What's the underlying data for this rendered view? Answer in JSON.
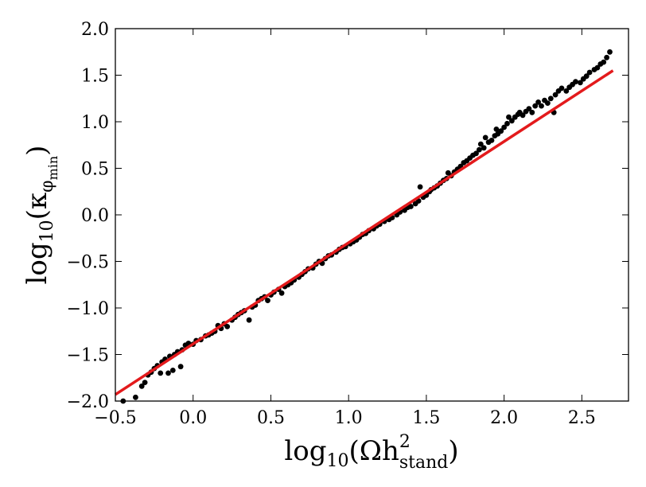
{
  "chart_data": {
    "type": "scatter",
    "title": "",
    "xlabel": {
      "prefix": "log",
      "base": "10",
      "open": "(Ωh",
      "sup": "2",
      "sub": "stand",
      "close": ")"
    },
    "ylabel": {
      "prefix": "log",
      "base": "10",
      "open": "(κ",
      "sub1": "φ",
      "sub2": "min",
      "close": ")"
    },
    "xlim": [
      -0.5,
      2.8
    ],
    "ylim": [
      -2.0,
      2.0
    ],
    "xticks": [
      {
        "value": -0.5,
        "label": "−0.5"
      },
      {
        "value": 0.0,
        "label": "0.0"
      },
      {
        "value": 0.5,
        "label": "0.5"
      },
      {
        "value": 1.0,
        "label": "1.0"
      },
      {
        "value": 1.5,
        "label": "1.5"
      },
      {
        "value": 2.0,
        "label": "2.0"
      },
      {
        "value": 2.5,
        "label": "2.5"
      }
    ],
    "yticks": [
      {
        "value": -2.0,
        "label": "−2.0"
      },
      {
        "value": -1.5,
        "label": "−1.5"
      },
      {
        "value": -1.0,
        "label": "−1.0"
      },
      {
        "value": -0.5,
        "label": "−0.5"
      },
      {
        "value": 0.0,
        "label": "0.0"
      },
      {
        "value": 0.5,
        "label": "0.5"
      },
      {
        "value": 1.0,
        "label": "1.0"
      },
      {
        "value": 1.5,
        "label": "1.5"
      },
      {
        "value": 2.0,
        "label": "2.0"
      }
    ],
    "grid": false,
    "legend": "none",
    "series": [
      {
        "kind": "scatter",
        "color": "#000000",
        "points": [
          [
            -0.45,
            -2.0
          ],
          [
            -0.37,
            -1.96
          ],
          [
            -0.33,
            -1.84
          ],
          [
            -0.31,
            -1.8
          ],
          [
            -0.29,
            -1.72
          ],
          [
            -0.27,
            -1.69
          ],
          [
            -0.25,
            -1.65
          ],
          [
            -0.23,
            -1.62
          ],
          [
            -0.21,
            -1.7
          ],
          [
            -0.2,
            -1.58
          ],
          [
            -0.18,
            -1.55
          ],
          [
            -0.16,
            -1.7
          ],
          [
            -0.15,
            -1.52
          ],
          [
            -0.13,
            -1.67
          ],
          [
            -0.12,
            -1.5
          ],
          [
            -0.1,
            -1.47
          ],
          [
            -0.08,
            -1.63
          ],
          [
            -0.07,
            -1.45
          ],
          [
            -0.05,
            -1.4
          ],
          [
            -0.03,
            -1.38
          ],
          [
            0.0,
            -1.39
          ],
          [
            0.02,
            -1.35
          ],
          [
            0.05,
            -1.34
          ],
          [
            0.08,
            -1.3
          ],
          [
            0.1,
            -1.29
          ],
          [
            0.12,
            -1.27
          ],
          [
            0.14,
            -1.25
          ],
          [
            0.16,
            -1.19
          ],
          [
            0.18,
            -1.22
          ],
          [
            0.2,
            -1.17
          ],
          [
            0.22,
            -1.2
          ],
          [
            0.25,
            -1.13
          ],
          [
            0.27,
            -1.1
          ],
          [
            0.29,
            -1.07
          ],
          [
            0.31,
            -1.05
          ],
          [
            0.33,
            -1.03
          ],
          [
            0.36,
            -1.13
          ],
          [
            0.38,
            -0.99
          ],
          [
            0.4,
            -0.97
          ],
          [
            0.42,
            -0.92
          ],
          [
            0.44,
            -0.9
          ],
          [
            0.46,
            -0.88
          ],
          [
            0.48,
            -0.92
          ],
          [
            0.5,
            -0.86
          ],
          [
            0.52,
            -0.83
          ],
          [
            0.55,
            -0.8
          ],
          [
            0.57,
            -0.84
          ],
          [
            0.59,
            -0.77
          ],
          [
            0.61,
            -0.75
          ],
          [
            0.63,
            -0.73
          ],
          [
            0.65,
            -0.7
          ],
          [
            0.68,
            -0.67
          ],
          [
            0.7,
            -0.64
          ],
          [
            0.72,
            -0.61
          ],
          [
            0.74,
            -0.58
          ],
          [
            0.77,
            -0.57
          ],
          [
            0.79,
            -0.53
          ],
          [
            0.81,
            -0.5
          ],
          [
            0.83,
            -0.52
          ],
          [
            0.85,
            -0.47
          ],
          [
            0.87,
            -0.44
          ],
          [
            0.89,
            -0.43
          ],
          [
            0.92,
            -0.4
          ],
          [
            0.94,
            -0.37
          ],
          [
            0.96,
            -0.35
          ],
          [
            0.98,
            -0.34
          ],
          [
            1.01,
            -0.31
          ],
          [
            1.03,
            -0.29
          ],
          [
            1.05,
            -0.27
          ],
          [
            1.07,
            -0.24
          ],
          [
            1.09,
            -0.21
          ],
          [
            1.11,
            -0.2
          ],
          [
            1.13,
            -0.17
          ],
          [
            1.16,
            -0.15
          ],
          [
            1.18,
            -0.12
          ],
          [
            1.2,
            -0.1
          ],
          [
            1.23,
            -0.07
          ],
          [
            1.26,
            -0.05
          ],
          [
            1.28,
            -0.03
          ],
          [
            1.31,
            0.0
          ],
          [
            1.33,
            0.03
          ],
          [
            1.36,
            0.05
          ],
          [
            1.38,
            0.08
          ],
          [
            1.4,
            0.09
          ],
          [
            1.43,
            0.12
          ],
          [
            1.45,
            0.15
          ],
          [
            1.46,
            0.3
          ],
          [
            1.48,
            0.19
          ],
          [
            1.5,
            0.21
          ],
          [
            1.52,
            0.25
          ],
          [
            1.53,
            0.27
          ],
          [
            1.55,
            0.29
          ],
          [
            1.57,
            0.31
          ],
          [
            1.59,
            0.34
          ],
          [
            1.61,
            0.37
          ],
          [
            1.63,
            0.39
          ],
          [
            1.64,
            0.45
          ],
          [
            1.66,
            0.42
          ],
          [
            1.68,
            0.46
          ],
          [
            1.7,
            0.49
          ],
          [
            1.72,
            0.52
          ],
          [
            1.74,
            0.56
          ],
          [
            1.76,
            0.58
          ],
          [
            1.78,
            0.61
          ],
          [
            1.8,
            0.64
          ],
          [
            1.82,
            0.66
          ],
          [
            1.84,
            0.7
          ],
          [
            1.85,
            0.76
          ],
          [
            1.87,
            0.72
          ],
          [
            1.88,
            0.83
          ],
          [
            1.9,
            0.78
          ],
          [
            1.92,
            0.8
          ],
          [
            1.94,
            0.85
          ],
          [
            1.95,
            0.92
          ],
          [
            1.96,
            0.87
          ],
          [
            1.98,
            0.9
          ],
          [
            2.0,
            0.94
          ],
          [
            2.02,
            0.98
          ],
          [
            2.03,
            1.05
          ],
          [
            2.05,
            1.01
          ],
          [
            2.07,
            1.05
          ],
          [
            2.09,
            1.08
          ],
          [
            2.1,
            1.1
          ],
          [
            2.12,
            1.07
          ],
          [
            2.14,
            1.11
          ],
          [
            2.16,
            1.14
          ],
          [
            2.18,
            1.1
          ],
          [
            2.2,
            1.17
          ],
          [
            2.22,
            1.21
          ],
          [
            2.24,
            1.17
          ],
          [
            2.26,
            1.23
          ],
          [
            2.28,
            1.2
          ],
          [
            2.3,
            1.25
          ],
          [
            2.32,
            1.1
          ],
          [
            2.33,
            1.29
          ],
          [
            2.35,
            1.33
          ],
          [
            2.37,
            1.36
          ],
          [
            2.4,
            1.33
          ],
          [
            2.42,
            1.37
          ],
          [
            2.44,
            1.4
          ],
          [
            2.46,
            1.43
          ],
          [
            2.49,
            1.42
          ],
          [
            2.51,
            1.46
          ],
          [
            2.53,
            1.49
          ],
          [
            2.55,
            1.53
          ],
          [
            2.58,
            1.56
          ],
          [
            2.6,
            1.58
          ],
          [
            2.62,
            1.62
          ],
          [
            2.64,
            1.64
          ],
          [
            2.66,
            1.69
          ],
          [
            2.68,
            1.75
          ]
        ]
      },
      {
        "kind": "line",
        "color": "#e31a1c",
        "points": [
          [
            -0.5,
            -1.93
          ],
          [
            2.7,
            1.55
          ]
        ]
      }
    ]
  }
}
